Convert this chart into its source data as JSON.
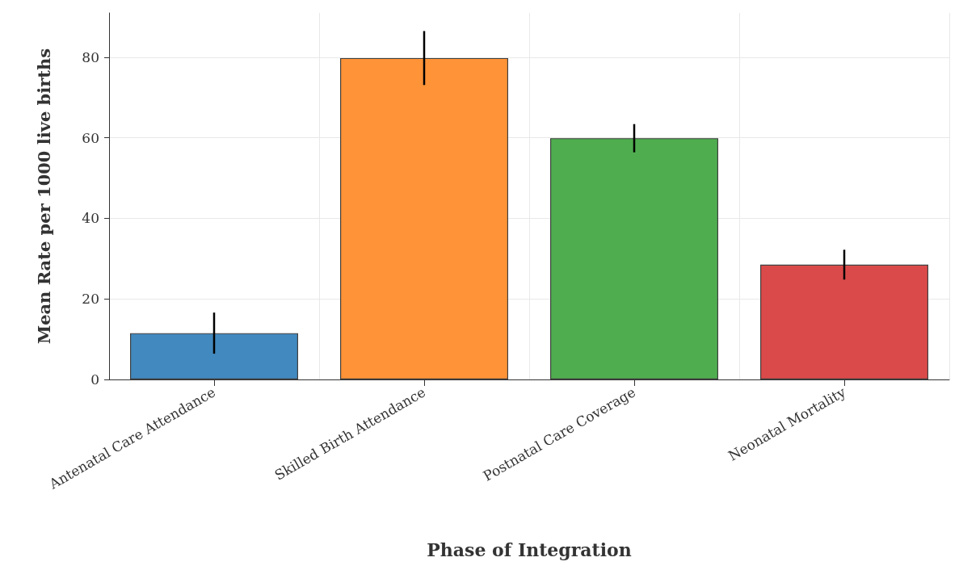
{
  "chart_data": {
    "type": "bar",
    "xlabel": "Phase of Integration",
    "ylabel": "Mean Rate per 1000 live births",
    "categories": [
      "Antenatal Care Attendance",
      "Skilled Birth Attendance",
      "Postnatal Care Coverage",
      "Neonatal Mortality"
    ],
    "values": [
      11.5,
      79.8,
      59.9,
      28.5
    ],
    "errors": [
      5.1,
      6.7,
      3.5,
      3.7
    ],
    "colors": [
      "#4189bf",
      "#ff9337",
      "#4fad4f",
      "#db4a4a"
    ],
    "ylim": [
      0,
      91
    ],
    "yticks": [
      0,
      20,
      40,
      60,
      80
    ],
    "grid": true
  }
}
